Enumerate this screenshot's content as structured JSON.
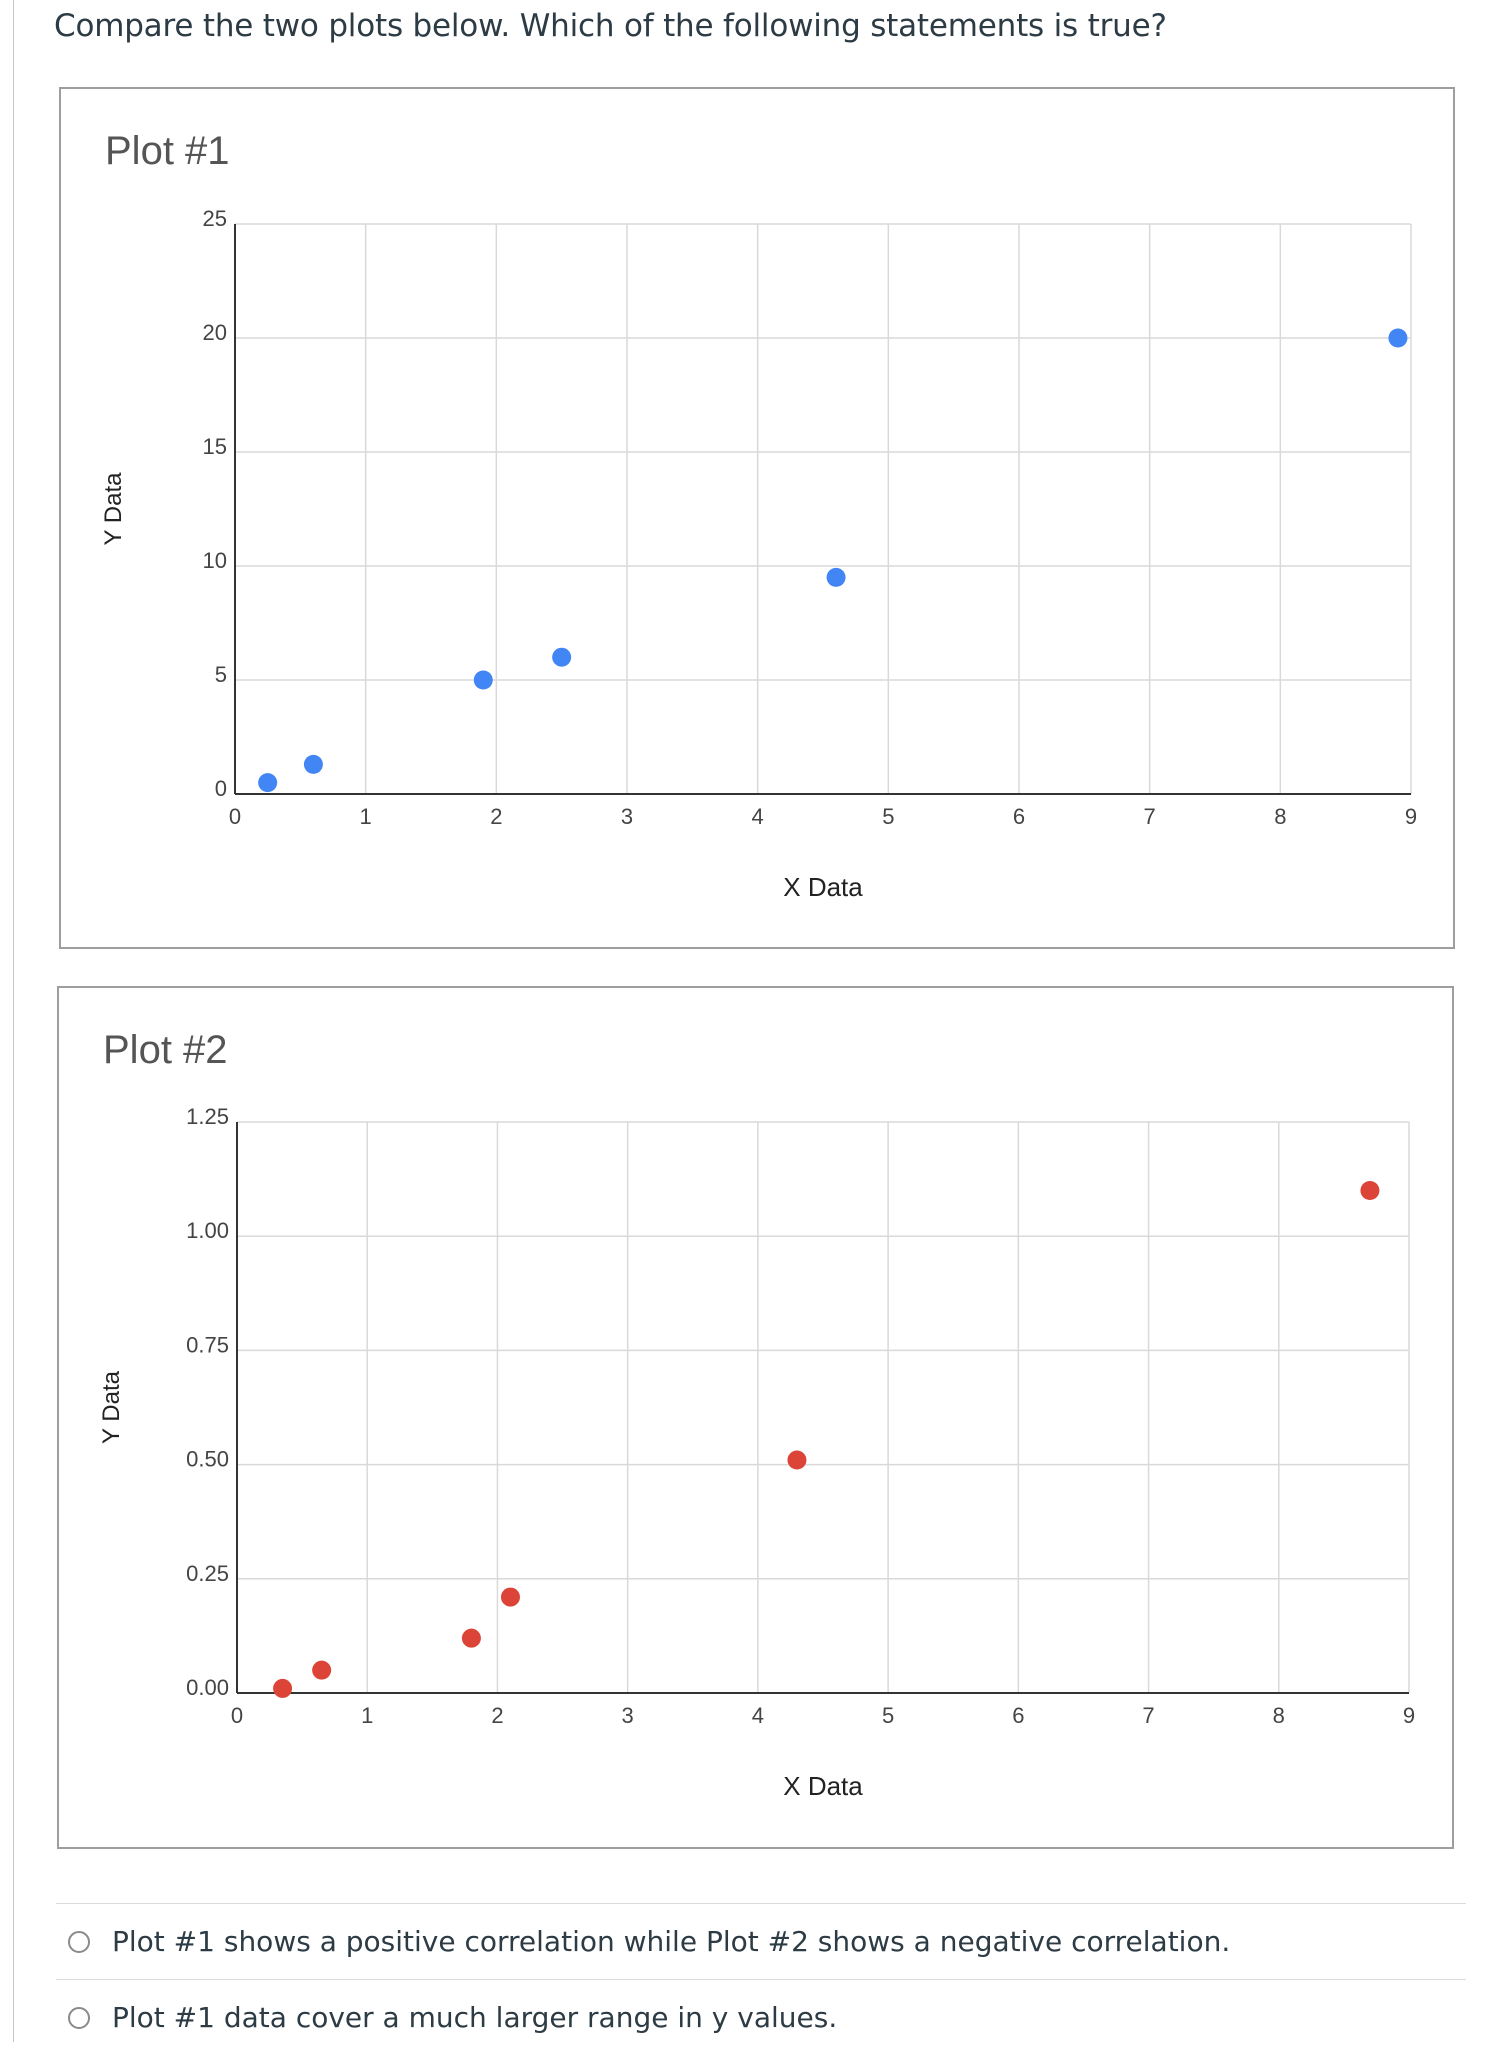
{
  "question": "Compare the two plots below. Which of the following statements is true?",
  "chart_data": [
    {
      "type": "scatter",
      "title": "Plot #1",
      "xlabel": "X Data",
      "ylabel": "Y Data",
      "xlim": [
        0,
        9
      ],
      "ylim": [
        0,
        25
      ],
      "x_ticks": [
        "0",
        "1",
        "2",
        "3",
        "4",
        "5",
        "6",
        "7",
        "8",
        "9"
      ],
      "y_ticks": [
        "0",
        "5",
        "10",
        "15",
        "20",
        "25"
      ],
      "grid": true,
      "color": "#4285f4",
      "x": [
        0.25,
        0.6,
        1.9,
        2.5,
        4.6,
        8.9
      ],
      "y": [
        0.5,
        1.3,
        5.0,
        6.0,
        9.5,
        20.0
      ]
    },
    {
      "type": "scatter",
      "title": "Plot #2",
      "xlabel": "X Data",
      "ylabel": "Y Data",
      "xlim": [
        0,
        9
      ],
      "ylim": [
        0,
        1.25
      ],
      "x_ticks": [
        "0",
        "1",
        "2",
        "3",
        "4",
        "5",
        "6",
        "7",
        "8",
        "9"
      ],
      "y_ticks": [
        "0.00",
        "0.25",
        "0.50",
        "0.75",
        "1.00",
        "1.25"
      ],
      "grid": true,
      "color": "#db4437",
      "x": [
        0.35,
        0.65,
        1.8,
        2.1,
        4.3,
        8.7
      ],
      "y": [
        0.01,
        0.05,
        0.12,
        0.21,
        0.51,
        1.1
      ]
    }
  ],
  "answers": [
    {
      "label": "Plot #1 shows a positive correlation while Plot #2 shows a negative correlation."
    },
    {
      "label": "Plot #1 data cover a much larger range in y values."
    }
  ]
}
